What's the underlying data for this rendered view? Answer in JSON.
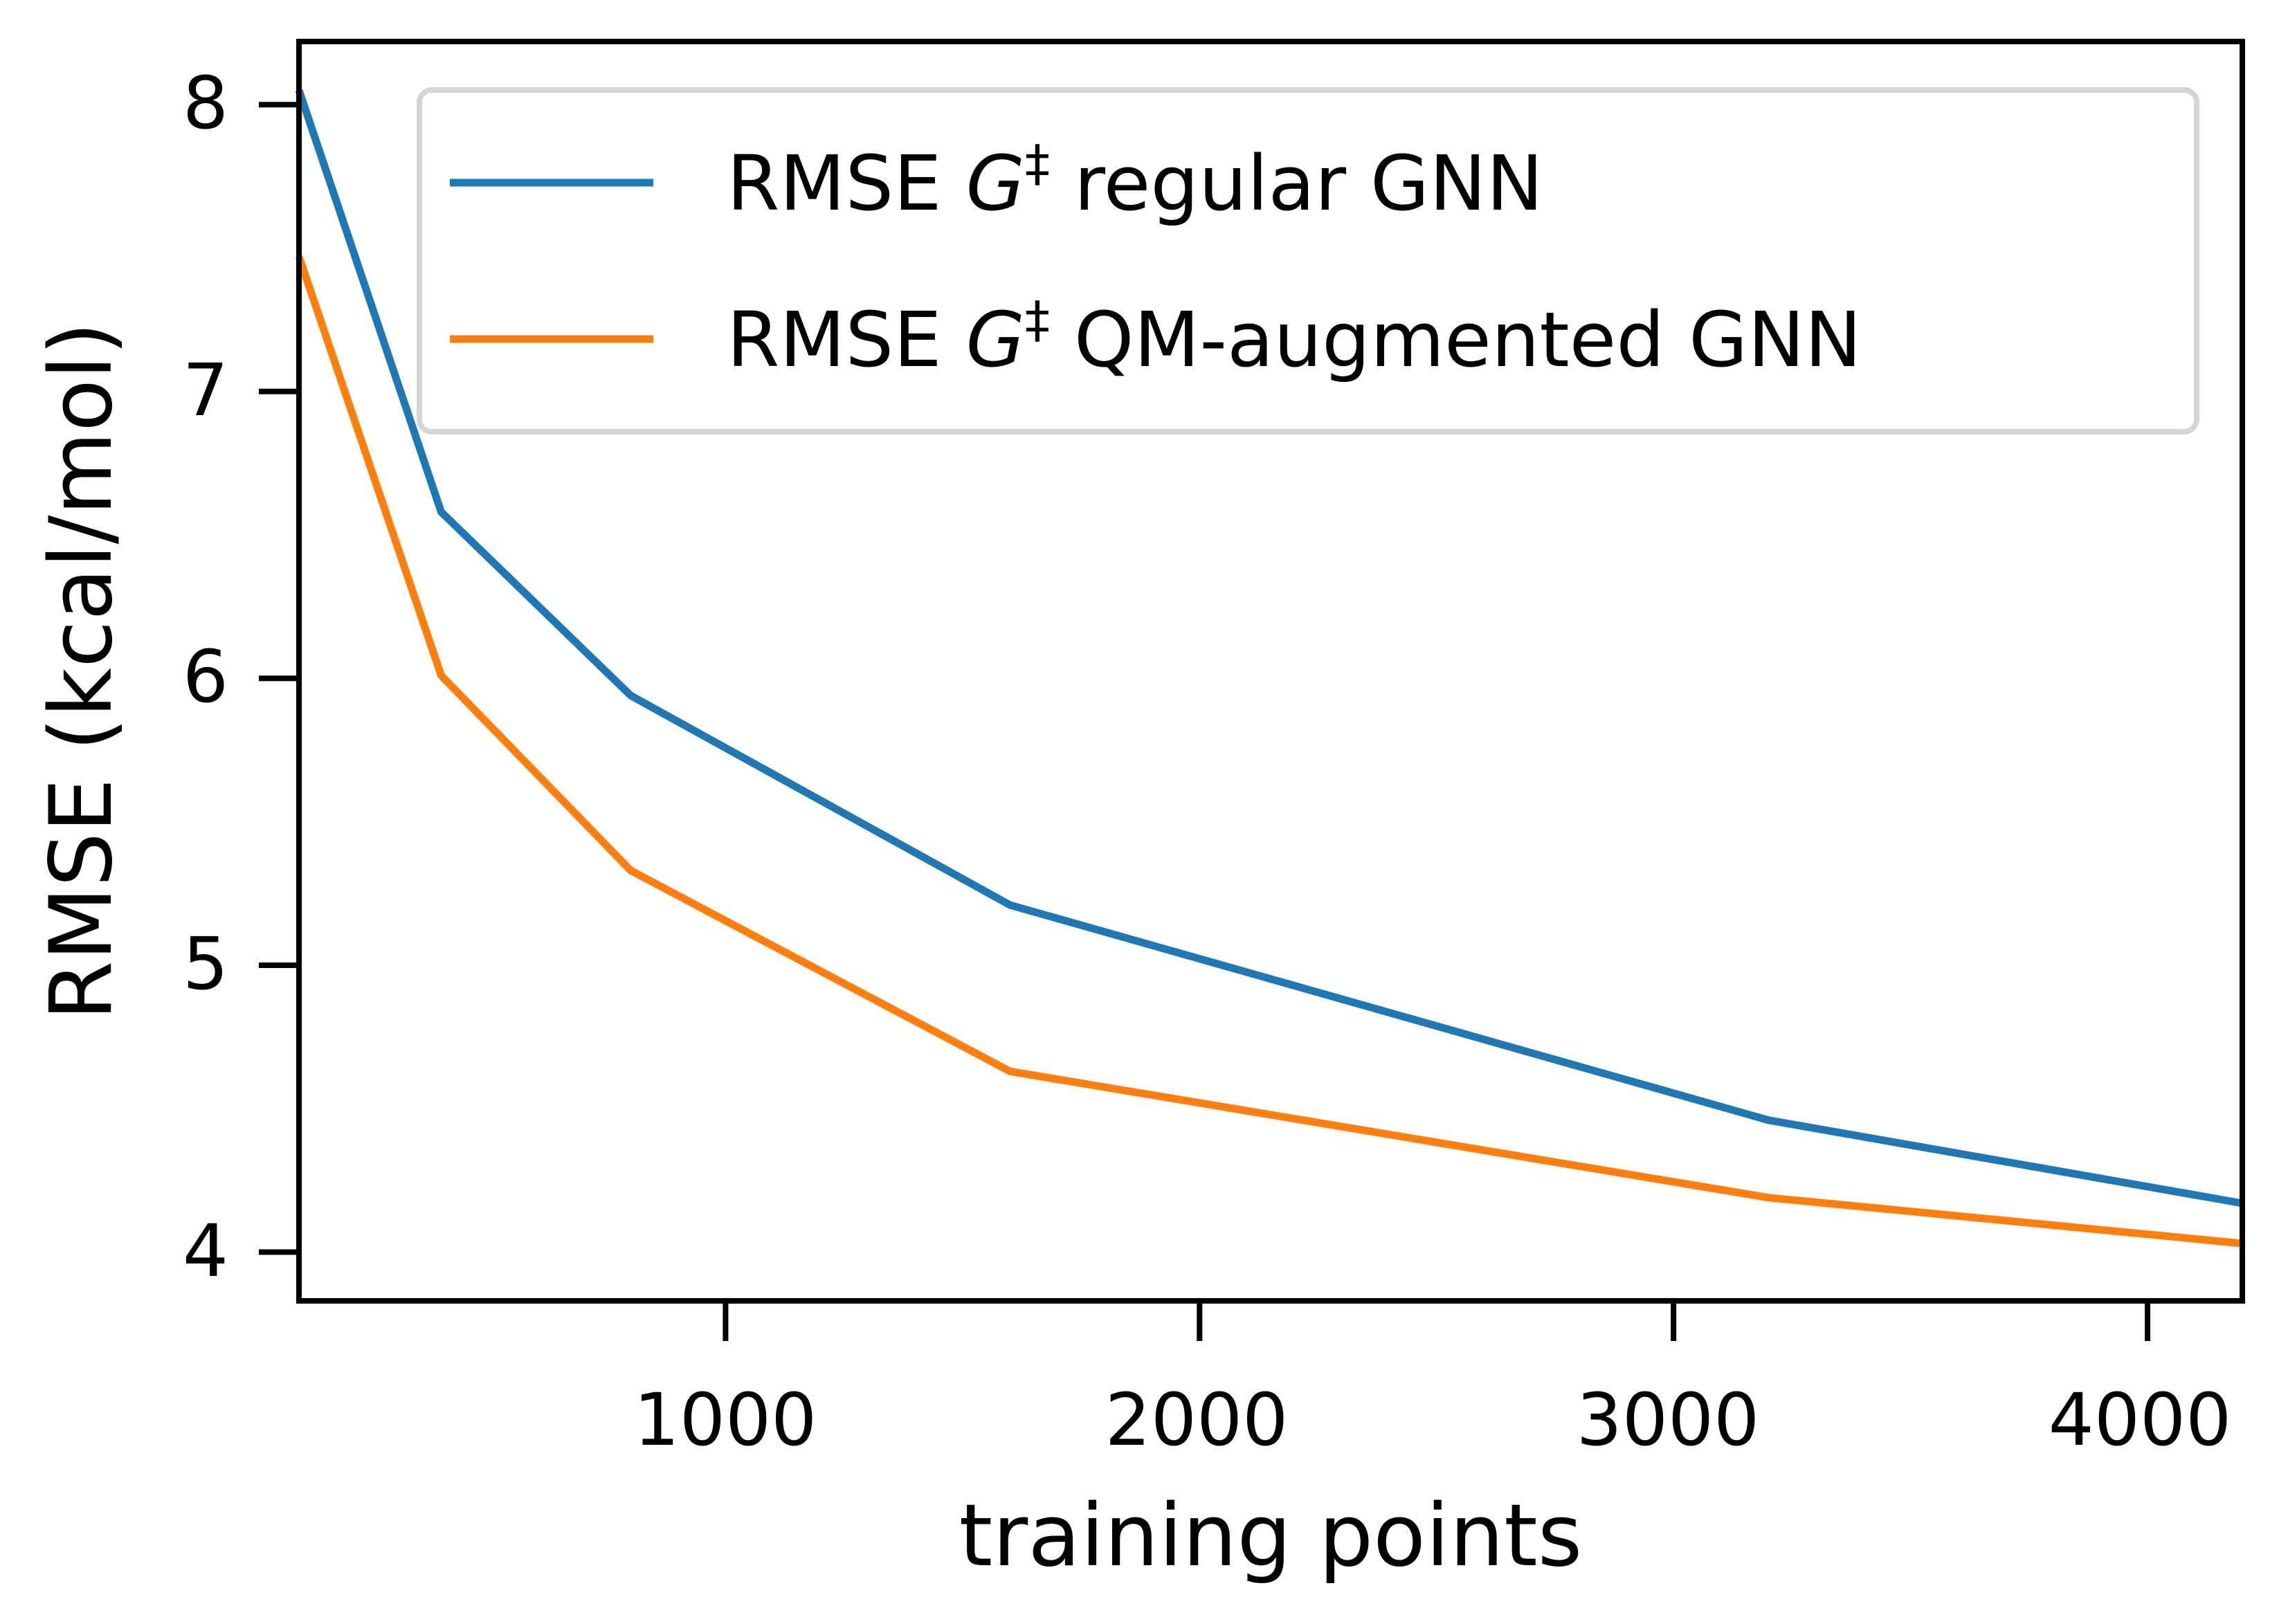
{
  "chart_data": {
    "type": "line",
    "title": "",
    "xlabel": "training points",
    "ylabel": "RMSE (kcal/mol)",
    "xlim": [
      100,
      4200
    ],
    "ylim": [
      3.83,
      8.22
    ],
    "xticks": [
      1000,
      2000,
      3000,
      4000
    ],
    "yticks": [
      4,
      5,
      6,
      7,
      8
    ],
    "xtick_labels": [
      "1000",
      "2000",
      "3000",
      "4000"
    ],
    "ytick_labels": [
      "4",
      "5",
      "6",
      "7",
      "8"
    ],
    "grid": false,
    "legend_position": "top-right",
    "x": [
      100,
      400,
      800,
      1600,
      3200,
      4200
    ],
    "series": [
      {
        "name": "RMSE G‡ regular GNN",
        "legend_prefix": "RMSE ",
        "legend_symbol": "G",
        "legend_superscript": "‡",
        "legend_suffix": " regular GNN",
        "color": "#1f77b4",
        "values": [
          8.05,
          6.58,
          5.94,
          5.21,
          4.46,
          4.17
        ]
      },
      {
        "name": "RMSE G‡ QM-augmented GNN",
        "legend_prefix": "RMSE ",
        "legend_symbol": "G",
        "legend_superscript": "‡",
        "legend_suffix": " QM-augmented GNN",
        "color": "#ff7f0e",
        "values": [
          7.47,
          6.01,
          5.33,
          4.63,
          4.19,
          4.03
        ]
      }
    ]
  }
}
